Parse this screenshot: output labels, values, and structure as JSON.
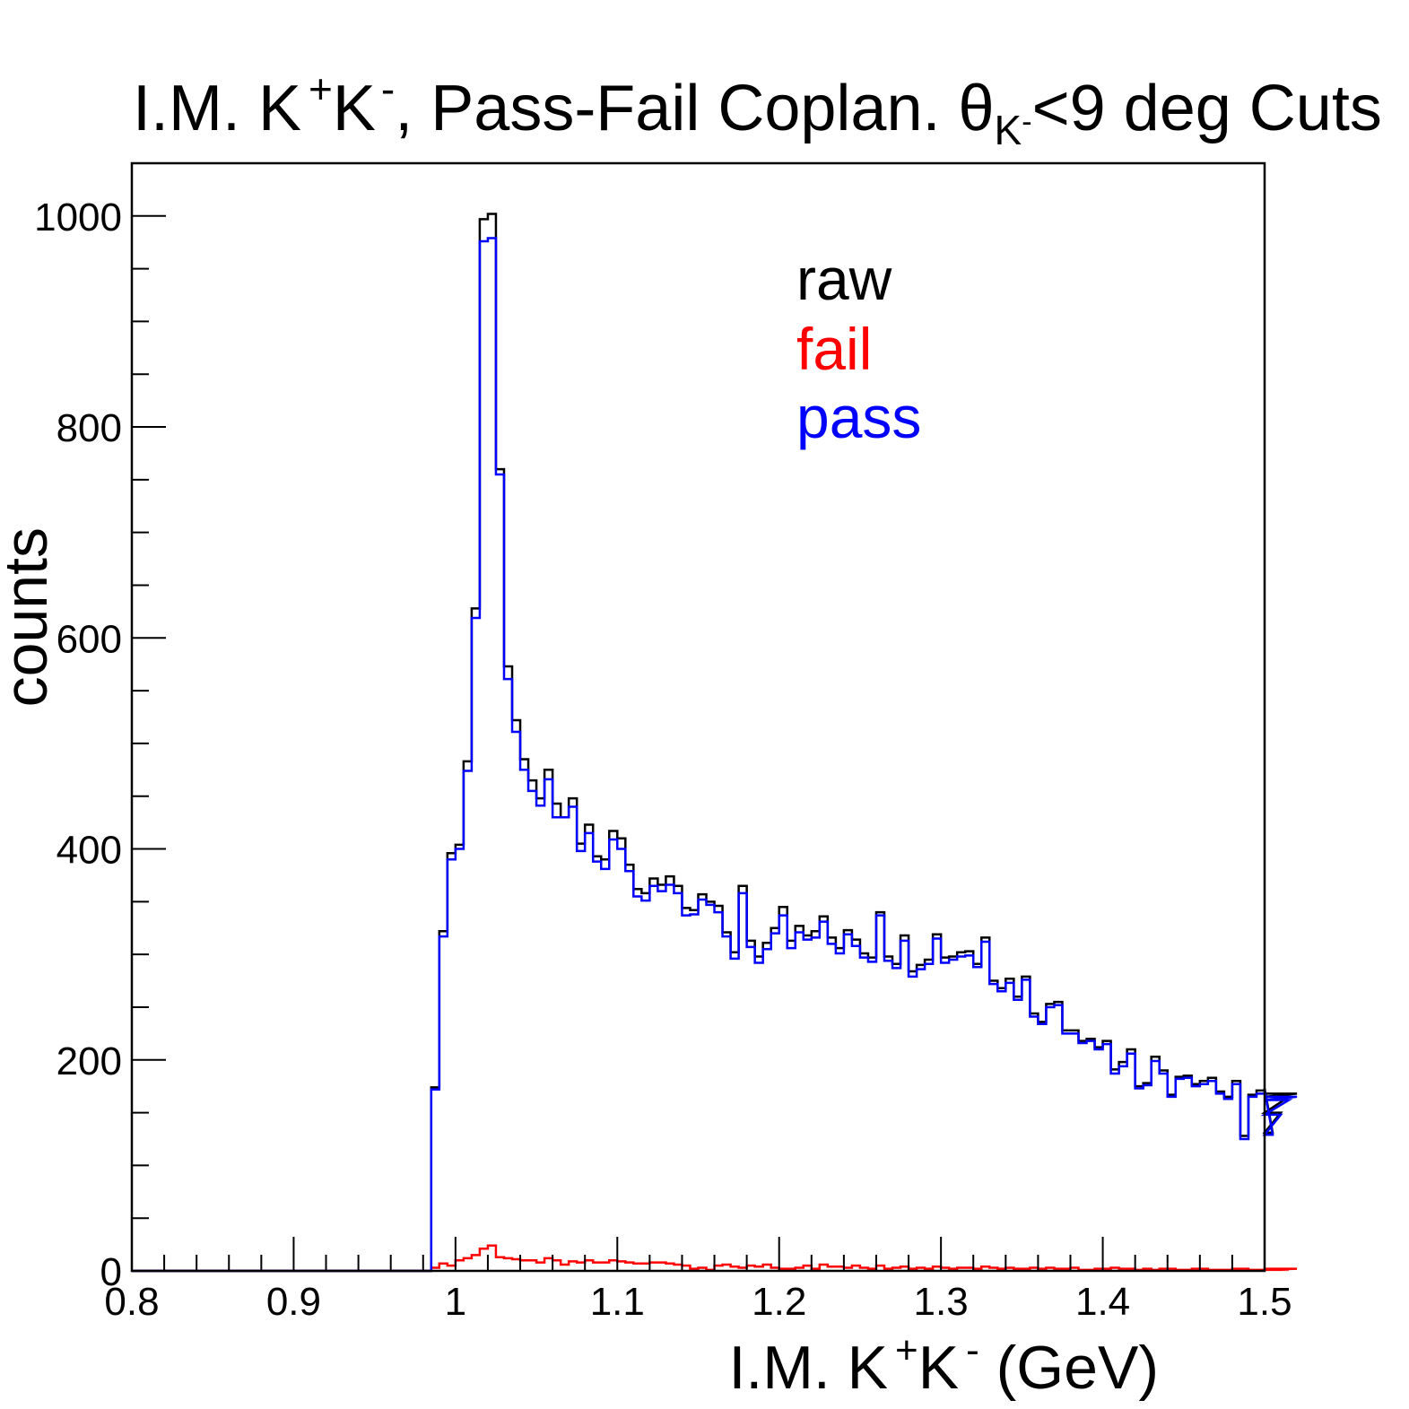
{
  "chart_data": {
    "type": "histogram",
    "title": {
      "t1": "I.M. K",
      "t2": "+",
      "t3": "K",
      "t4": "-",
      "t5": ", Pass-Fail Coplan. θ",
      "t6": "K",
      "t7": "-",
      "t8": "<9 deg Cuts"
    },
    "xlabel": {
      "t1": "I.M. K",
      "t2": "+",
      "t3": "K",
      "t4": "-",
      "t5": " (GeV)"
    },
    "ylabel": "counts",
    "xlim": [
      0.8,
      1.5
    ],
    "ylim": [
      0,
      1050
    ],
    "bin_width": 0.005,
    "xticks": [
      "0.8",
      "0.9",
      "1",
      "1.1",
      "1.2",
      "1.3",
      "1.4",
      "1.5"
    ],
    "yticks": [
      "0",
      "200",
      "400",
      "600",
      "800",
      "1000"
    ],
    "legend": {
      "position": "top-right",
      "entries": [
        {
          "label": "raw",
          "color": "#000000"
        },
        {
          "label": "fail",
          "color": "#ff0000"
        },
        {
          "label": "pass",
          "color": "#0000ff"
        }
      ]
    },
    "series": [
      {
        "name": "raw",
        "color": "#000000",
        "x_start": 0.985,
        "values": [
          174,
          322,
          396,
          404,
          483,
          628,
          997,
          1002,
          760,
          573,
          522,
          485,
          465,
          448,
          475,
          443,
          430,
          448,
          405,
          423,
          393,
          390,
          417,
          410,
          385,
          362,
          358,
          372,
          366,
          374,
          365,
          344,
          342,
          357,
          350,
          346,
          321,
          302,
          365,
          313,
          298,
          311,
          325,
          345,
          313,
          327,
          318,
          322,
          336,
          316,
          306,
          323,
          314,
          301,
          297,
          340,
          298,
          291,
          318,
          284,
          290,
          295,
          319,
          297,
          298,
          302,
          303,
          291,
          316,
          275,
          268,
          277,
          260,
          279,
          244,
          236,
          253,
          255,
          228,
          228,
          218,
          220,
          212,
          218,
          191,
          198,
          210,
          175,
          178,
          203,
          190,
          167,
          184,
          185,
          177,
          180,
          183,
          170,
          165,
          180,
          128,
          167,
          171,
          173,
          131,
          150,
          165,
          168
        ]
      },
      {
        "name": "fail",
        "color": "#ff0000",
        "x_start": 0.985,
        "values": [
          3,
          7,
          5,
          10,
          12,
          15,
          21,
          24,
          13,
          12,
          11,
          10,
          10,
          8,
          12,
          10,
          6,
          9,
          8,
          10,
          8,
          8,
          10,
          9,
          8,
          7,
          7,
          8,
          8,
          7,
          6,
          5,
          2,
          3,
          1,
          5,
          6,
          4,
          3,
          5,
          4,
          6,
          3,
          2,
          2,
          3,
          5,
          2,
          6,
          4,
          4,
          3,
          5,
          3,
          2,
          5,
          2,
          3,
          4,
          2,
          3,
          2,
          4,
          3,
          2,
          3,
          3,
          2,
          4,
          3,
          2,
          3,
          2,
          2,
          3,
          2,
          3,
          2,
          2,
          3,
          1,
          1,
          2,
          2,
          3,
          2,
          2,
          1,
          2,
          1,
          2,
          2,
          1,
          1,
          2,
          2,
          1,
          1,
          1,
          2,
          2,
          1,
          1,
          2,
          1,
          1,
          1,
          2
        ]
      },
      {
        "name": "pass",
        "color": "#0000ff",
        "x_start": 0.985,
        "values": [
          172,
          317,
          390,
          400,
          474,
          619,
          976,
          979,
          755,
          561,
          511,
          475,
          455,
          441,
          466,
          430,
          430,
          440,
          398,
          415,
          388,
          381,
          409,
          400,
          379,
          355,
          351,
          365,
          360,
          366,
          358,
          337,
          338,
          352,
          347,
          340,
          317,
          296,
          358,
          307,
          292,
          305,
          320,
          337,
          306,
          321,
          314,
          316,
          331,
          310,
          301,
          319,
          308,
          297,
          293,
          337,
          294,
          287,
          313,
          279,
          286,
          291,
          315,
          292,
          295,
          298,
          299,
          288,
          312,
          272,
          265,
          273,
          257,
          276,
          241,
          234,
          250,
          252,
          225,
          225,
          216,
          218,
          210,
          215,
          187,
          194,
          206,
          173,
          176,
          199,
          187,
          165,
          182,
          183,
          175,
          177,
          180,
          168,
          163,
          177,
          125,
          165,
          168,
          171,
          129,
          148,
          162,
          165
        ]
      }
    ]
  }
}
